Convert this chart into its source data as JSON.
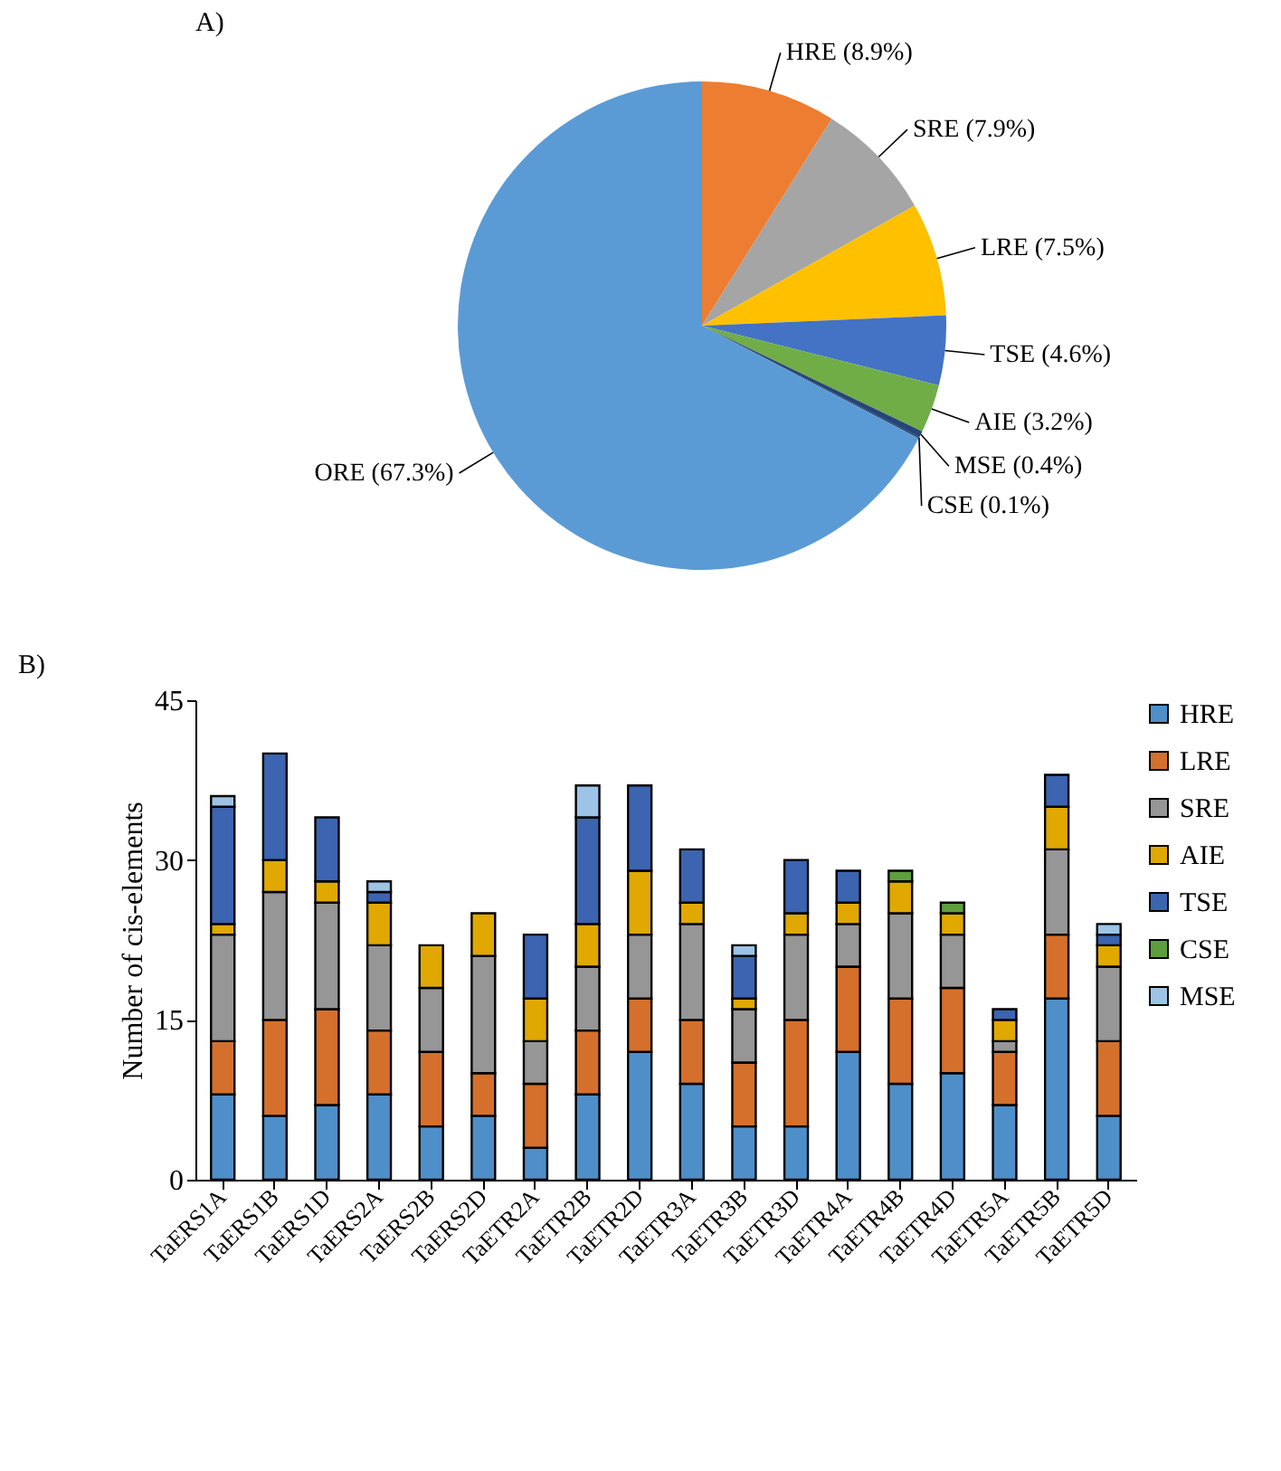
{
  "chart_data": [
    {
      "type": "pie",
      "title": "A)",
      "categories": [
        "HRE (8.9%)",
        "SRE (7.9%)",
        "LRE (7.5%)",
        "TSE (4.6%)",
        "AIE (3.2%)",
        "MSE (0.4%)",
        "CSE (0.1%)",
        "ORE (67.3%)"
      ],
      "values": [
        8.9,
        7.9,
        7.5,
        4.6,
        3.2,
        0.4,
        0.1,
        67.3
      ],
      "colors": [
        "#ed7d31",
        "#a5a5a5",
        "#ffc000",
        "#4472c4",
        "#70ad47",
        "#264478",
        "#1f3864",
        "#5b9bd5"
      ],
      "legend": false
    },
    {
      "type": "bar",
      "stacked": true,
      "title": "B)",
      "ylabel": "Number of cis-elements",
      "ylim": [
        0,
        45
      ],
      "yticks": [
        0,
        15,
        30,
        45
      ],
      "grid": false,
      "legend": "right",
      "categories": [
        "TaERS1A",
        "TaERS1B",
        "TaERS1D",
        "TaERS2A",
        "TaERS2B",
        "TaERS2D",
        "TaETR2A",
        "TaETR2B",
        "TaETR2D",
        "TaETR3A",
        "TaETR3B",
        "TaETR3D",
        "TaETR4A",
        "TaETR4B",
        "TaETR4D",
        "TaETR5A",
        "TaETR5B",
        "TaETR5D"
      ],
      "series": [
        {
          "name": "HRE",
          "color": "#4f8fc9",
          "values": [
            8,
            6,
            7,
            8,
            5,
            6,
            3,
            8,
            12,
            9,
            5,
            5,
            12,
            9,
            10,
            7,
            17,
            6
          ]
        },
        {
          "name": "LRE",
          "color": "#d4702c",
          "values": [
            5,
            9,
            9,
            6,
            7,
            4,
            6,
            6,
            5,
            6,
            6,
            10,
            8,
            8,
            8,
            5,
            6,
            7
          ]
        },
        {
          "name": "SRE",
          "color": "#969696",
          "values": [
            10,
            12,
            10,
            8,
            6,
            11,
            4,
            6,
            6,
            9,
            5,
            8,
            4,
            8,
            5,
            1,
            8,
            7
          ]
        },
        {
          "name": "AIE",
          "color": "#e0a800",
          "values": [
            1,
            3,
            2,
            4,
            4,
            4,
            4,
            4,
            6,
            2,
            1,
            2,
            2,
            3,
            2,
            2,
            4,
            2
          ]
        },
        {
          "name": "TSE",
          "color": "#3c64b0",
          "values": [
            11,
            10,
            6,
            1,
            0,
            0,
            6,
            10,
            8,
            5,
            4,
            5,
            3,
            0,
            0,
            1,
            3,
            1
          ]
        },
        {
          "name": "CSE",
          "color": "#5e9e3c",
          "values": [
            0,
            0,
            0,
            0,
            0,
            0,
            0,
            0,
            0,
            0,
            0,
            0,
            0,
            1,
            1,
            0,
            0,
            0
          ]
        },
        {
          "name": "MSE",
          "color": "#9dc3e6",
          "values": [
            1,
            0,
            0,
            1,
            0,
            0,
            0,
            3,
            0,
            0,
            1,
            0,
            0,
            0,
            0,
            0,
            0,
            1
          ]
        }
      ]
    }
  ]
}
